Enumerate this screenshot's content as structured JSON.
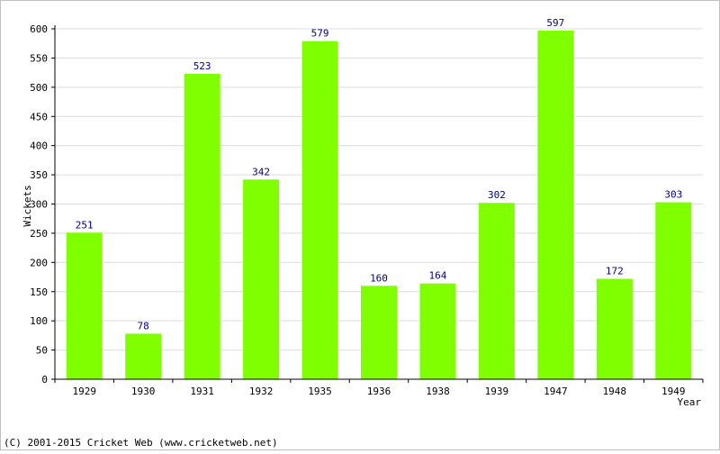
{
  "colors": {
    "bar": "#80ff00",
    "grid": "#dcdcdc",
    "axis": "#000000",
    "data_label": "#000080",
    "frame": "#c0c0c0"
  },
  "chart_data": {
    "type": "bar",
    "categories": [
      "1929",
      "1930",
      "1931",
      "1932",
      "1935",
      "1936",
      "1938",
      "1939",
      "1947",
      "1948",
      "1949"
    ],
    "values": [
      251,
      78,
      523,
      342,
      579,
      160,
      164,
      302,
      597,
      172,
      303
    ],
    "title": "",
    "xlabel": "Year",
    "ylabel": "Wickets",
    "ylim": [
      0,
      600
    ],
    "yticks": [
      0,
      50,
      100,
      150,
      200,
      250,
      300,
      350,
      400,
      450,
      500,
      550,
      600
    ],
    "grid": "horizontal",
    "data_labels": true,
    "legend": "none"
  },
  "footer": {
    "copyright": "(C) 2001-2015 Cricket Web (www.cricketweb.net)"
  }
}
